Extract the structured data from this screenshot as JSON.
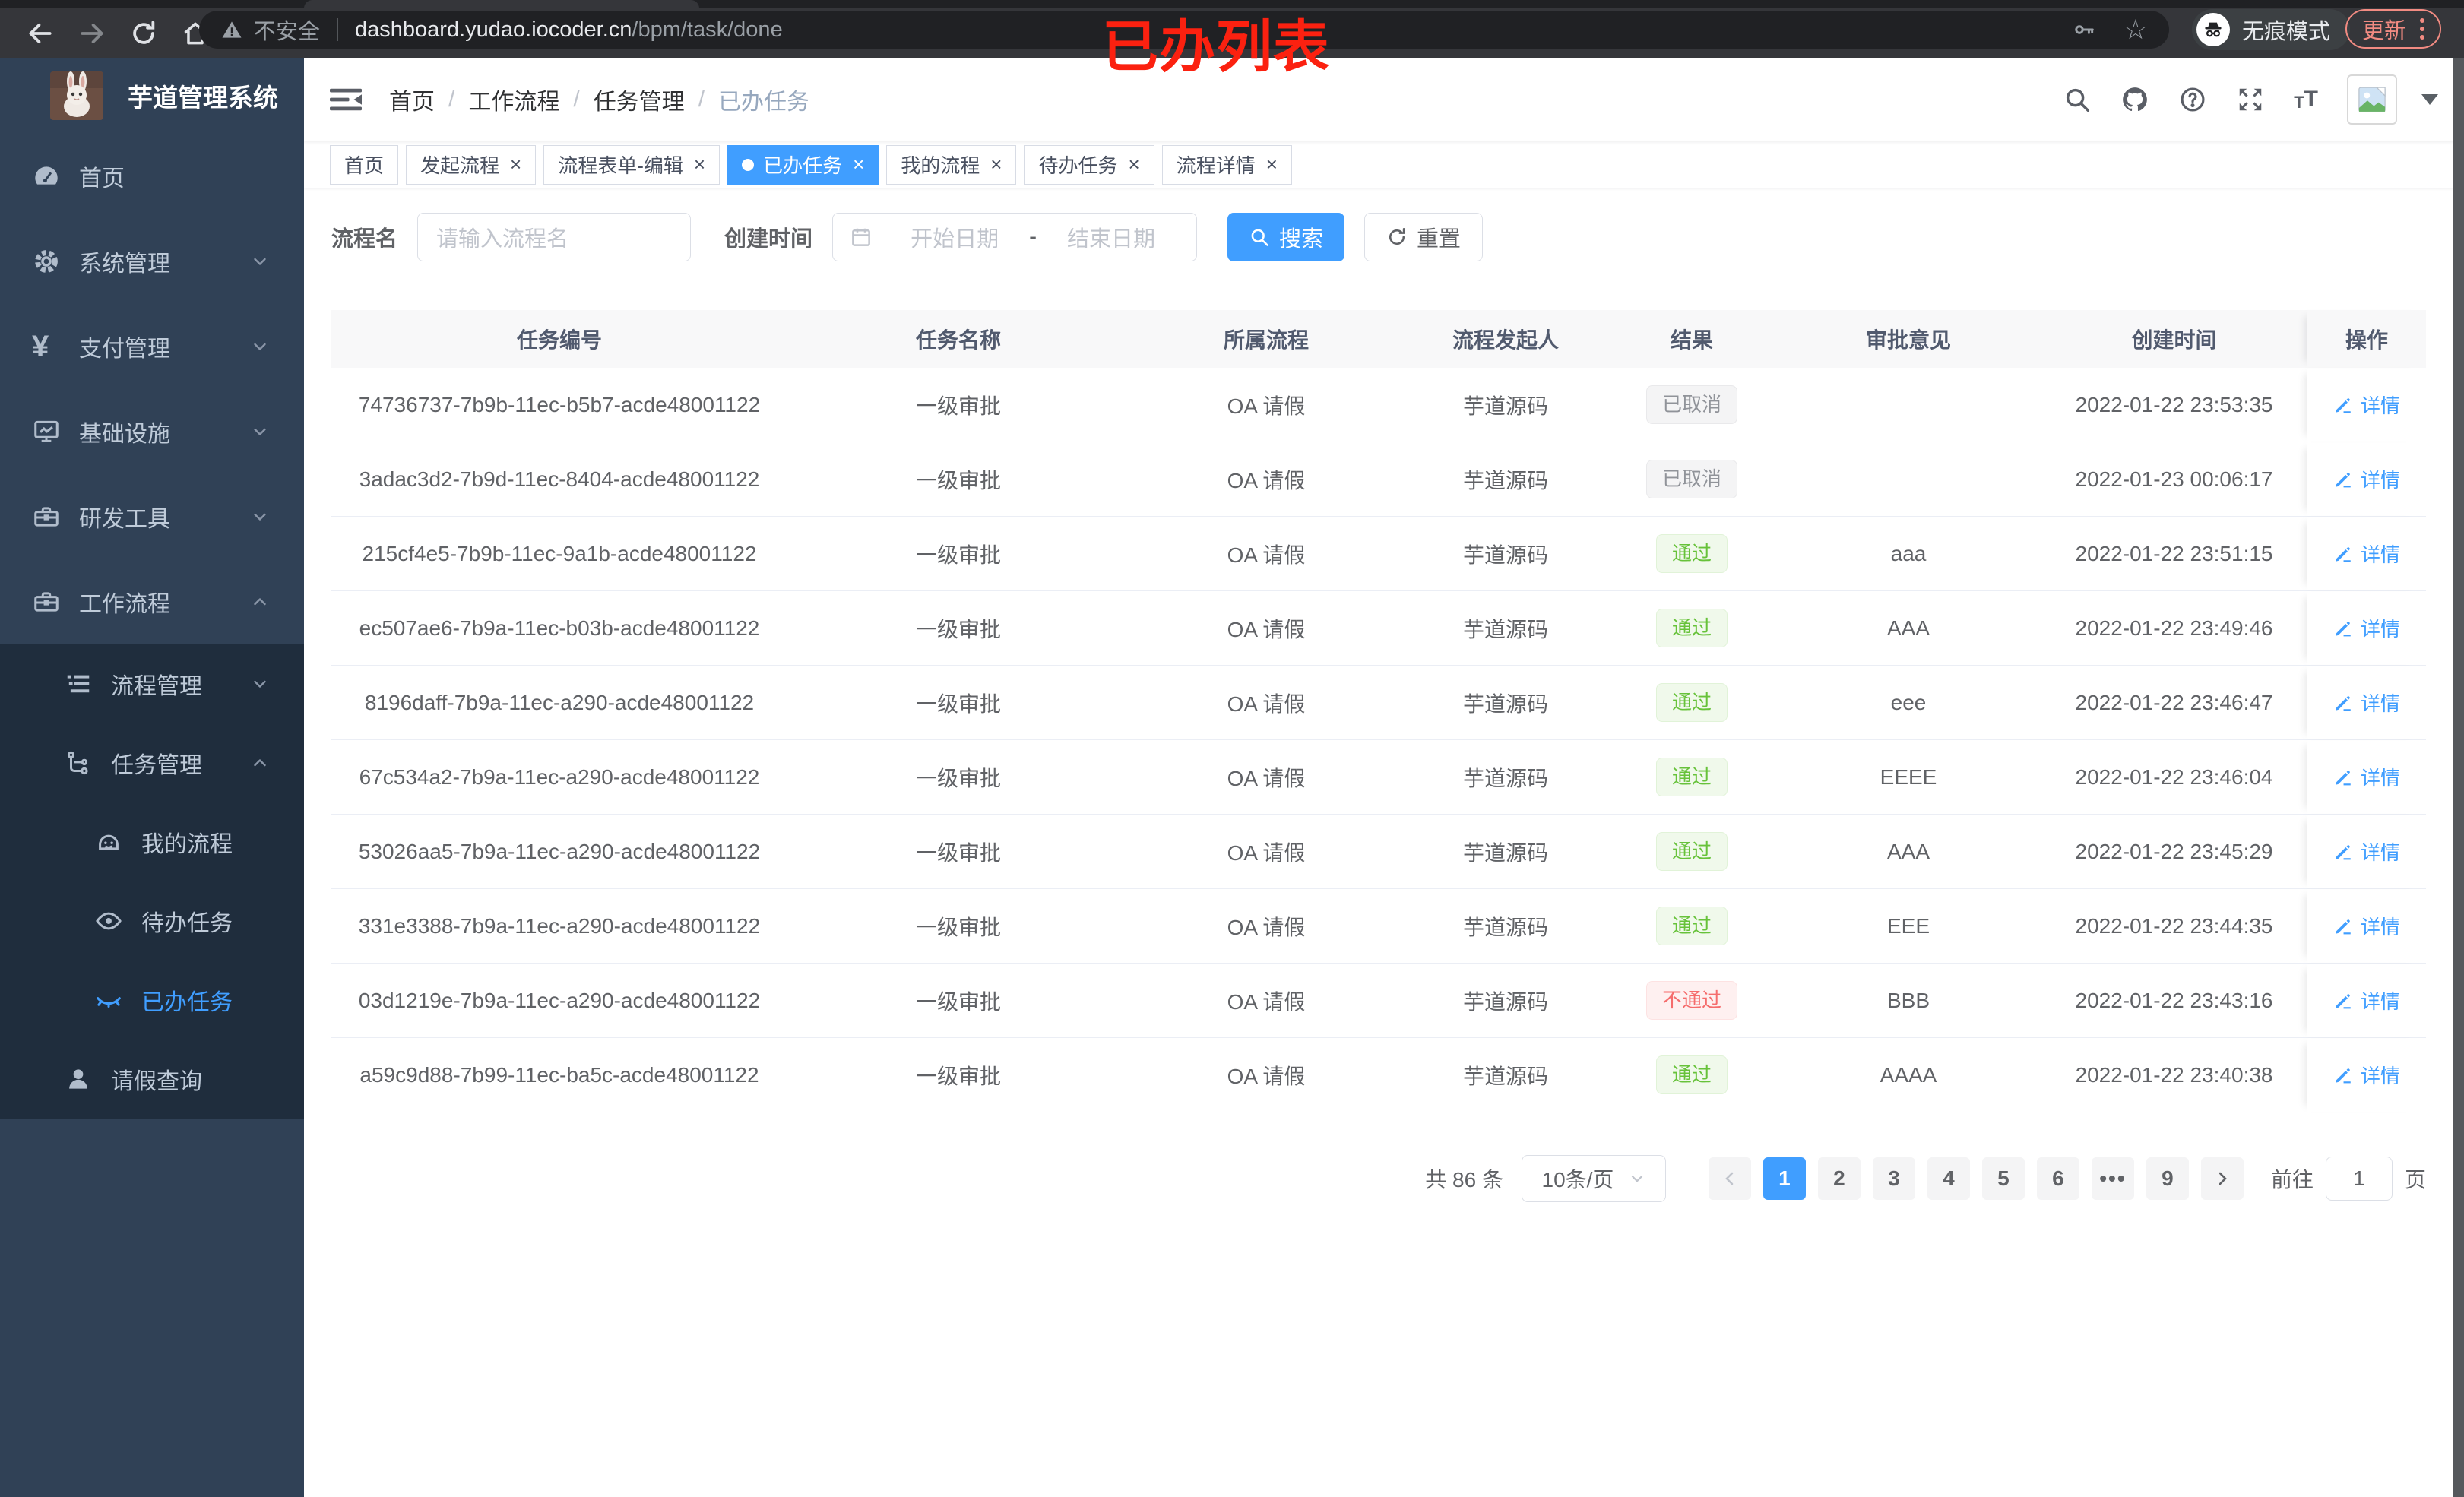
{
  "browser": {
    "security_label": "不安全",
    "url_domain": "dashboard.yudao.iocoder.cn",
    "url_path": "/bpm/task/done",
    "incognito_label": "无痕模式",
    "update_label": "更新"
  },
  "annotation": "已办列表",
  "colors": {
    "accent": "#409eff",
    "success": "#67c23a",
    "danger": "#f56c6c",
    "info": "#909399",
    "sidebar_bg": "#304156",
    "submenu_bg": "#1f2d3d",
    "update_badge": "#f28b82",
    "annotation_red": "#fb2110"
  },
  "sidebar": {
    "title": "芋道管理系统",
    "items": [
      {
        "label": "首页",
        "icon": "dashboard-icon",
        "level": 1
      },
      {
        "label": "系统管理",
        "icon": "gear-icon",
        "level": 1,
        "arrow": "down"
      },
      {
        "label": "支付管理",
        "icon": "yen-icon",
        "level": 1,
        "arrow": "down"
      },
      {
        "label": "基础设施",
        "icon": "monitor-icon",
        "level": 1,
        "arrow": "down"
      },
      {
        "label": "研发工具",
        "icon": "toolbox-icon",
        "level": 1,
        "arrow": "down"
      },
      {
        "label": "工作流程",
        "icon": "briefcase-icon",
        "level": 1,
        "arrow": "up"
      },
      {
        "label": "流程管理",
        "icon": "list-icon",
        "level": 2,
        "arrow": "down",
        "sub": true
      },
      {
        "label": "任务管理",
        "icon": "flow-icon",
        "level": 2,
        "arrow": "up",
        "sub": true
      },
      {
        "label": "我的流程",
        "icon": "face-icon",
        "level": 3,
        "sub": true
      },
      {
        "label": "待办任务",
        "icon": "eye-icon",
        "level": 3,
        "sub": true
      },
      {
        "label": "已办任务",
        "icon": "eye-closed-icon",
        "level": 3,
        "sub": true,
        "active": true
      },
      {
        "label": "请假查询",
        "icon": "user-icon",
        "level": 2,
        "sub": true
      }
    ]
  },
  "header": {
    "breadcrumb": [
      "首页",
      "工作流程",
      "任务管理",
      "已办任务"
    ]
  },
  "tabs": [
    {
      "label": "首页"
    },
    {
      "label": "发起流程",
      "closable": true
    },
    {
      "label": "流程表单-编辑",
      "closable": true
    },
    {
      "label": "已办任务",
      "closable": true,
      "active": true
    },
    {
      "label": "我的流程",
      "closable": true
    },
    {
      "label": "待办任务",
      "closable": true
    },
    {
      "label": "流程详情",
      "closable": true
    }
  ],
  "filters": {
    "name_label": "流程名",
    "name_placeholder": "请输入流程名",
    "time_label": "创建时间",
    "start_placeholder": "开始日期",
    "range_separator": "-",
    "end_placeholder": "结束日期",
    "search_label": "搜索",
    "reset_label": "重置"
  },
  "table": {
    "columns": [
      "任务编号",
      "任务名称",
      "所属流程",
      "流程发起人",
      "结果",
      "审批意见",
      "创建时间",
      "操作"
    ],
    "action_label": "详情",
    "rows": [
      {
        "id": "74736737-7b9b-11ec-b5b7-acde48001122",
        "name": "一级审批",
        "process": "OA 请假",
        "starter": "芋道源码",
        "result": "已取消",
        "result_type": "info",
        "comment": "",
        "time": "2022-01-22 23:53:35"
      },
      {
        "id": "3adac3d2-7b9d-11ec-8404-acde48001122",
        "name": "一级审批",
        "process": "OA 请假",
        "starter": "芋道源码",
        "result": "已取消",
        "result_type": "info",
        "comment": "",
        "time": "2022-01-23 00:06:17"
      },
      {
        "id": "215cf4e5-7b9b-11ec-9a1b-acde48001122",
        "name": "一级审批",
        "process": "OA 请假",
        "starter": "芋道源码",
        "result": "通过",
        "result_type": "success",
        "comment": "aaa",
        "time": "2022-01-22 23:51:15"
      },
      {
        "id": "ec507ae6-7b9a-11ec-b03b-acde48001122",
        "name": "一级审批",
        "process": "OA 请假",
        "starter": "芋道源码",
        "result": "通过",
        "result_type": "success",
        "comment": "AAA",
        "time": "2022-01-22 23:49:46"
      },
      {
        "id": "8196daff-7b9a-11ec-a290-acde48001122",
        "name": "一级审批",
        "process": "OA 请假",
        "starter": "芋道源码",
        "result": "通过",
        "result_type": "success",
        "comment": "eee",
        "time": "2022-01-22 23:46:47"
      },
      {
        "id": "67c534a2-7b9a-11ec-a290-acde48001122",
        "name": "一级审批",
        "process": "OA 请假",
        "starter": "芋道源码",
        "result": "通过",
        "result_type": "success",
        "comment": "EEEE",
        "time": "2022-01-22 23:46:04"
      },
      {
        "id": "53026aa5-7b9a-11ec-a290-acde48001122",
        "name": "一级审批",
        "process": "OA 请假",
        "starter": "芋道源码",
        "result": "通过",
        "result_type": "success",
        "comment": "AAA",
        "time": "2022-01-22 23:45:29"
      },
      {
        "id": "331e3388-7b9a-11ec-a290-acde48001122",
        "name": "一级审批",
        "process": "OA 请假",
        "starter": "芋道源码",
        "result": "通过",
        "result_type": "success",
        "comment": "EEE",
        "time": "2022-01-22 23:44:35"
      },
      {
        "id": "03d1219e-7b9a-11ec-a290-acde48001122",
        "name": "一级审批",
        "process": "OA 请假",
        "starter": "芋道源码",
        "result": "不通过",
        "result_type": "danger",
        "comment": "BBB",
        "time": "2022-01-22 23:43:16"
      },
      {
        "id": "a59c9d88-7b99-11ec-ba5c-acde48001122",
        "name": "一级审批",
        "process": "OA 请假",
        "starter": "芋道源码",
        "result": "通过",
        "result_type": "success",
        "comment": "AAAA",
        "time": "2022-01-22 23:40:38"
      }
    ]
  },
  "pagination": {
    "total_label": "共 86 条",
    "page_size": "10条/页",
    "pages": [
      {
        "label": "1",
        "active": true
      },
      {
        "label": "2"
      },
      {
        "label": "3"
      },
      {
        "label": "4"
      },
      {
        "label": "5"
      },
      {
        "label": "6"
      },
      {
        "label": "•••",
        "ellipsis": true
      },
      {
        "label": "9"
      }
    ],
    "goto_label": "前往",
    "goto_value": "1",
    "page_unit": "页"
  }
}
